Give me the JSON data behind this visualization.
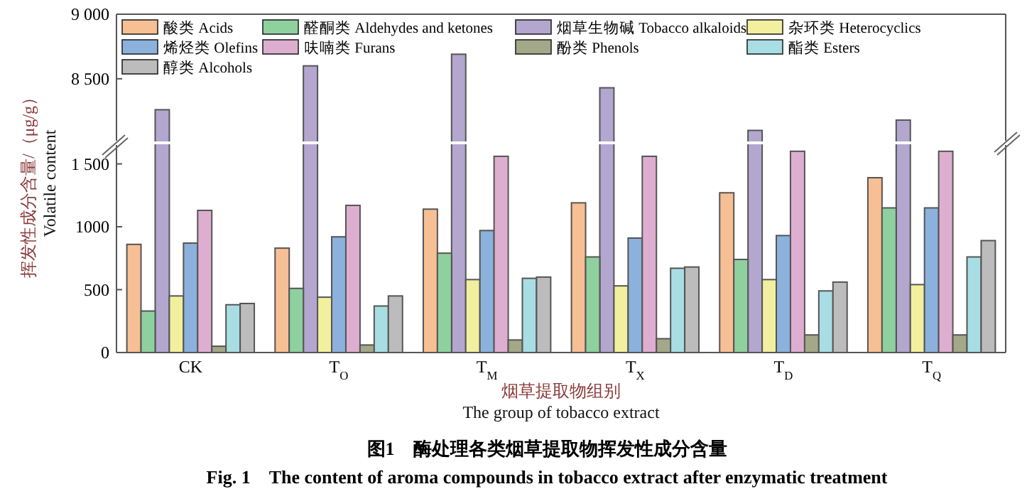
{
  "chart_data": [
    {
      "type": "bar",
      "categories": [
        null,
        null,
        null,
        null,
        null,
        null
      ],
      "series": [
        {
          "name": "酸类 Acids",
          "color": "#f7bf94",
          "values": [
            null,
            null,
            null,
            null,
            null,
            null
          ]
        },
        {
          "name": "醛酮类 Aldehydes and ketones",
          "color": "#8fd09f",
          "values": [
            null,
            null,
            null,
            null,
            null,
            null
          ]
        },
        {
          "name": "烟草生物碱 Tobacco alkaloids",
          "color": "#b3a6cf",
          "values": [
            8260,
            8600,
            8690,
            8430,
            8100,
            8180
          ]
        },
        {
          "name": "杂环类 Heterocyclics",
          "color": "#f2f09e",
          "values": [
            null,
            null,
            null,
            null,
            null,
            null
          ]
        },
        {
          "name": "烯烃类 Olefins",
          "color": "#8cb1dc",
          "values": [
            null,
            null,
            null,
            null,
            null,
            null
          ]
        },
        {
          "name": "呋喃类 Furans",
          "color": "#deaed0",
          "values": [
            null,
            null,
            null,
            null,
            null,
            null
          ]
        },
        {
          "name": "酚类 Phenols",
          "color": "#a3a888",
          "values": [
            null,
            null,
            null,
            null,
            null,
            null
          ]
        },
        {
          "name": "酯类 Esters",
          "color": "#a8dde3",
          "values": [
            null,
            null,
            null,
            null,
            null,
            null
          ]
        },
        {
          "name": "醇类 Alcohols",
          "color": "#bcbcbc",
          "values": [
            null,
            null,
            null,
            null,
            null,
            null
          ]
        }
      ],
      "ylim": [
        8020,
        9000
      ],
      "yticks": [
        {
          "value": 8500,
          "label": "8 500"
        },
        {
          "value": 9000,
          "label": "9 000"
        }
      ],
      "tick_labels": "y",
      "legend": "top"
    },
    {
      "type": "bar",
      "title": "图1　酶处理各类烟草提取物挥发性成分含量",
      "subtitle": "Fig. 1　The content of aroma compounds in tobacco extract after enzymatic treatment",
      "xlabel": "烟草提取物组别\nThe group of tobacco extract",
      "ylabel": "挥发性成分含量/（μg/g）\nVolatile content",
      "categories": [
        "CK",
        "T$_{O}$",
        "T$_{M}$",
        "T$_{X}$",
        "T$_{D}$",
        "T$_{Q}$"
      ],
      "series": [
        {
          "color": "#f7bf94",
          "values": [
            860,
            830,
            1140,
            1190,
            1270,
            1390
          ]
        },
        {
          "color": "#8fd09f",
          "values": [
            330,
            510,
            790,
            760,
            740,
            1150
          ]
        },
        {
          "values": [
            null,
            null,
            null,
            null,
            null,
            null
          ]
        },
        {
          "color": "#f2f09e",
          "values": [
            450,
            440,
            580,
            530,
            580,
            540
          ]
        },
        {
          "color": "#8cb1dc",
          "values": [
            870,
            920,
            970,
            910,
            930,
            1150
          ]
        },
        {
          "color": "#deaed0",
          "values": [
            1130,
            1170,
            1560,
            1560,
            1600,
            1600
          ]
        },
        {
          "color": "#a3a888",
          "values": [
            50,
            60,
            100,
            110,
            140,
            140
          ]
        },
        {
          "color": "#a8dde3",
          "values": [
            380,
            370,
            590,
            670,
            490,
            760
          ]
        },
        {
          "color": "#bcbcbc",
          "values": [
            390,
            450,
            600,
            680,
            560,
            890
          ]
        }
      ],
      "ylim": [
        0,
        1650
      ],
      "yticks": [
        0,
        500,
        {
          "value": 1000,
          "label": "1000"
        },
        {
          "value": 1500,
          "label": "1 500"
        }
      ]
    }
  ]
}
